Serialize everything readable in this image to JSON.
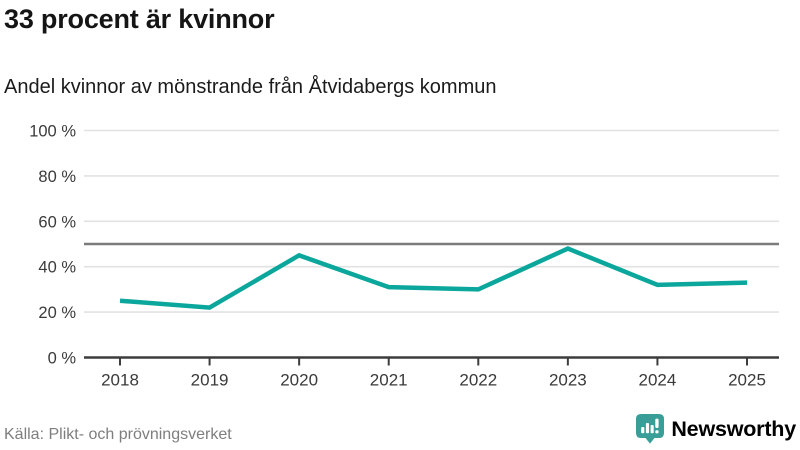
{
  "header": {
    "title": "33 procent är kvinnor",
    "subtitle": "Andel kvinnor av mönstrande från Åtvidabergs kommun"
  },
  "footer": {
    "source": "Källa: Plikt- och prövningsverket",
    "brand_name": "Newsworthy"
  },
  "colors": {
    "line": "#0ba79c",
    "brand_teal": "#3a9e98",
    "reference_line": "#7c7c7c",
    "grid": "#e2e2e2",
    "axis": "#3d3d3d"
  },
  "chart_data": {
    "type": "line",
    "title": "33 procent är kvinnor",
    "subtitle": "Andel kvinnor av mönstrande från Åtvidabergs kommun",
    "x": [
      2018,
      2019,
      2020,
      2021,
      2022,
      2023,
      2024,
      2025
    ],
    "series": [
      {
        "name": "Andel kvinnor av mönstrande",
        "values": [
          25,
          22,
          45,
          31,
          30,
          48,
          32,
          33
        ]
      }
    ],
    "xlabel": "",
    "ylabel": "",
    "ylim": [
      0,
      100
    ],
    "yticks": [
      0,
      20,
      40,
      60,
      80,
      100
    ],
    "ytick_suffix": " %",
    "reference_line_y": 50,
    "grid": true,
    "legend": false
  }
}
